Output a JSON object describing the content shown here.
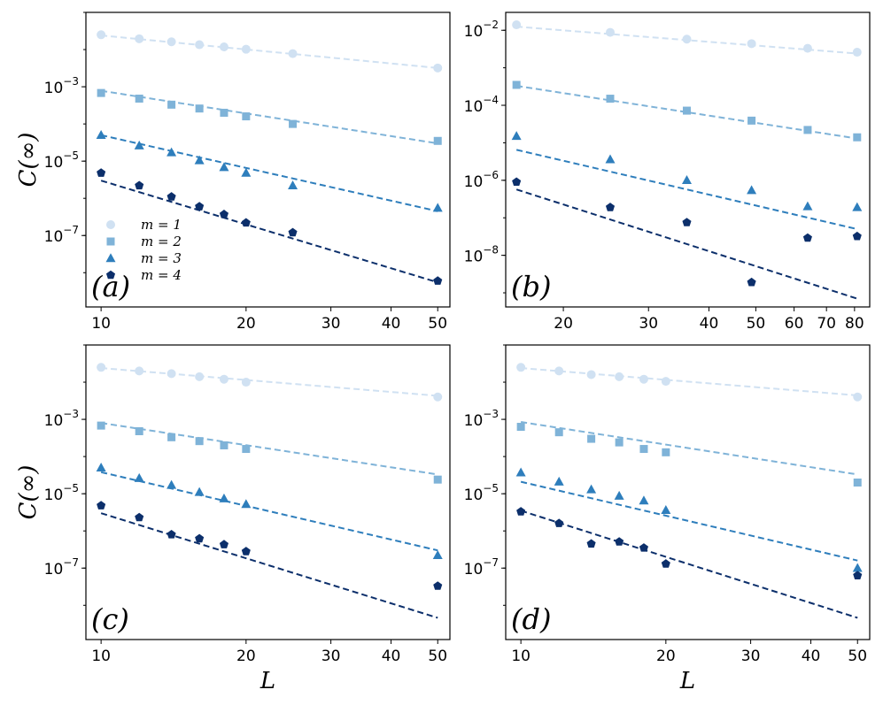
{
  "figure": {
    "ylabel": "C(∞)",
    "xlabel": "L"
  },
  "colors": {
    "m1": "#d0e1f2",
    "m2": "#7fb3d8",
    "m3": "#2e7ebc",
    "m4": "#0c2f6b"
  },
  "chart_data": [
    {
      "type": "scatter",
      "panel": "(a)",
      "xscale": "log",
      "yscale": "log",
      "xlim": [
        9.3,
        53
      ],
      "ylim": [
        1.2e-09,
        0.1
      ],
      "xticks": [
        10,
        20,
        30,
        40,
        50
      ],
      "yticks": [
        {
          "value": 0.001,
          "label": "10^-3"
        },
        {
          "value": 1e-05,
          "label": "10^-5"
        },
        {
          "value": 1e-07,
          "label": "10^-7"
        }
      ],
      "show_xlabel": false,
      "show_ylabel": true,
      "legend": {
        "position": "lower-left",
        "entries": [
          "m = 1",
          "m = 2",
          "m = 3",
          "m = 4"
        ]
      },
      "series": [
        {
          "name": "m = 1",
          "marker": "circle",
          "x": [
            10,
            12,
            14,
            16,
            18,
            20,
            25,
            50
          ],
          "y": [
            0.025,
            0.0195,
            0.0162,
            0.0135,
            0.0118,
            0.0102,
            0.0078,
            0.0032
          ],
          "fit": [
            [
              10,
              0.024
            ],
            [
              50,
              0.0032
            ]
          ]
        },
        {
          "name": "m = 2",
          "marker": "square",
          "x": [
            10,
            12,
            14,
            16,
            18,
            20,
            25,
            50
          ],
          "y": [
            0.00068,
            0.00048,
            0.00033,
            0.00026,
            0.0002,
            0.00016,
            0.0001,
            3.5e-05
          ],
          "fit": [
            [
              10,
              0.00078
            ],
            [
              50,
              3e-05
            ]
          ]
        },
        {
          "name": "m = 3",
          "marker": "triangle",
          "x": [
            10,
            12,
            14,
            16,
            18,
            20,
            25,
            50
          ],
          "y": [
            5e-05,
            2.6e-05,
            1.7e-05,
            1.04e-05,
            6.8e-06,
            4.8e-06,
            2.2e-06,
            5.5e-07
          ],
          "fit": [
            [
              10,
              5e-05
            ],
            [
              50,
              4.5e-07
            ]
          ]
        },
        {
          "name": "m = 4",
          "marker": "pentagon",
          "x": [
            10,
            12,
            14,
            16,
            18,
            20,
            25,
            50
          ],
          "y": [
            4.8e-06,
            2.2e-06,
            1.1e-06,
            6e-07,
            3.7e-07,
            2.2e-07,
            1.2e-07,
            6e-09
          ],
          "fit": [
            [
              10,
              3e-06
            ],
            [
              50,
              5.5e-09
            ]
          ]
        }
      ]
    },
    {
      "type": "scatter",
      "panel": "(b)",
      "xscale": "log",
      "yscale": "log",
      "xlim": [
        15.2,
        86
      ],
      "ylim": [
        4.2e-10,
        0.03
      ],
      "xticks": [
        20,
        30,
        40,
        50,
        60,
        70,
        80
      ],
      "yticks": [
        {
          "value": 0.01,
          "label": "10^-2"
        },
        {
          "value": 0.0001,
          "label": "10^-4"
        },
        {
          "value": 1e-06,
          "label": "10^-6"
        },
        {
          "value": 1e-08,
          "label": "10^-8"
        }
      ],
      "show_xlabel": false,
      "show_ylabel": false,
      "series": [
        {
          "name": "m = 1",
          "marker": "circle",
          "x": [
            16,
            25,
            36,
            49,
            64,
            81
          ],
          "y": [
            0.014,
            0.0088,
            0.0058,
            0.0044,
            0.0033,
            0.0026
          ],
          "fit": [
            [
              16,
              0.0125
            ],
            [
              81,
              0.0024
            ]
          ]
        },
        {
          "name": "m = 2",
          "marker": "square",
          "x": [
            16,
            25,
            36,
            49,
            64,
            81
          ],
          "y": [
            0.00035,
            0.00015,
            7.2e-05,
            3.9e-05,
            2.2e-05,
            1.4e-05
          ],
          "fit": [
            [
              16,
              0.00033
            ],
            [
              81,
              1.3e-05
            ]
          ]
        },
        {
          "name": "m = 3",
          "marker": "triangle",
          "x": [
            16,
            25,
            36,
            49,
            64,
            81
          ],
          "y": [
            1.5e-05,
            3.6e-06,
            1e-06,
            5.4e-07,
            2e-07,
            1.9e-07
          ],
          "fit": [
            [
              16,
              6.5e-06
            ],
            [
              81,
              5e-08
            ]
          ]
        },
        {
          "name": "m = 4",
          "marker": "pentagon",
          "x": [
            16,
            25,
            36,
            49,
            64,
            81
          ],
          "y": [
            9e-07,
            1.9e-07,
            7.5e-08,
            1.9e-09,
            2.9e-08,
            3.2e-08
          ],
          "fit": [
            [
              16,
              5.7e-07
            ],
            [
              81,
              7e-10
            ]
          ]
        }
      ]
    },
    {
      "type": "scatter",
      "panel": "(c)",
      "xscale": "log",
      "yscale": "log",
      "xlim": [
        9.3,
        53
      ],
      "ylim": [
        1.2e-09,
        0.1
      ],
      "xticks": [
        10,
        20,
        30,
        40,
        50
      ],
      "yticks": [
        {
          "value": 0.001,
          "label": "10^-3"
        },
        {
          "value": 1e-05,
          "label": "10^-5"
        },
        {
          "value": 1e-07,
          "label": "10^-7"
        }
      ],
      "show_xlabel": true,
      "show_ylabel": true,
      "series": [
        {
          "name": "m = 1",
          "marker": "circle",
          "x": [
            10,
            12,
            14,
            16,
            18,
            20,
            50
          ],
          "y": [
            0.025,
            0.02,
            0.017,
            0.014,
            0.012,
            0.01,
            0.004
          ],
          "fit": [
            [
              10,
              0.024
            ],
            [
              50,
              0.0043
            ]
          ]
        },
        {
          "name": "m = 2",
          "marker": "square",
          "x": [
            10,
            12,
            14,
            16,
            18,
            20,
            50
          ],
          "y": [
            0.00068,
            0.00048,
            0.00033,
            0.00026,
            0.0002,
            0.00016,
            2.4e-05
          ],
          "fit": [
            [
              10,
              0.0008
            ],
            [
              50,
              3.3e-05
            ]
          ]
        },
        {
          "name": "m = 3",
          "marker": "triangle",
          "x": [
            10,
            12,
            14,
            16,
            18,
            20,
            50
          ],
          "y": [
            5e-05,
            2.6e-05,
            1.7e-05,
            1.1e-05,
            7.4e-06,
            5.2e-06,
            2.2e-07
          ],
          "fit": [
            [
              10,
              3.8e-05
            ],
            [
              50,
              3e-07
            ]
          ]
        },
        {
          "name": "m = 4",
          "marker": "pentagon",
          "x": [
            10,
            12,
            14,
            16,
            18,
            20,
            50
          ],
          "y": [
            4.8e-06,
            2.3e-06,
            8e-07,
            6.2e-07,
            4.3e-07,
            2.8e-07,
            3.3e-08
          ],
          "fit": [
            [
              10,
              3e-06
            ],
            [
              50,
              4.6e-09
            ]
          ]
        }
      ]
    },
    {
      "type": "scatter",
      "panel": "(d)",
      "xscale": "log",
      "yscale": "log",
      "xlim": [
        9.3,
        53
      ],
      "ylim": [
        1.2e-09,
        0.1
      ],
      "xticks": [
        10,
        20,
        30,
        40,
        50
      ],
      "yticks": [
        {
          "value": 0.001,
          "label": "10^-3"
        },
        {
          "value": 1e-05,
          "label": "10^-5"
        },
        {
          "value": 1e-07,
          "label": "10^-7"
        }
      ],
      "show_xlabel": true,
      "show_ylabel": false,
      "series": [
        {
          "name": "m = 1",
          "marker": "circle",
          "x": [
            10,
            12,
            14,
            16,
            18,
            20,
            50
          ],
          "y": [
            0.025,
            0.02,
            0.016,
            0.014,
            0.012,
            0.0105,
            0.004
          ],
          "fit": [
            [
              10,
              0.024
            ],
            [
              50,
              0.0044
            ]
          ]
        },
        {
          "name": "m = 2",
          "marker": "square",
          "x": [
            10,
            12,
            14,
            16,
            18,
            20,
            50
          ],
          "y": [
            0.00063,
            0.00045,
            0.0003,
            0.00024,
            0.00016,
            0.00013,
            2e-05
          ],
          "fit": [
            [
              10,
              0.00085
            ],
            [
              50,
              3.3e-05
            ]
          ]
        },
        {
          "name": "m = 3",
          "marker": "triangle",
          "x": [
            10,
            12,
            14,
            16,
            18,
            20,
            50
          ],
          "y": [
            3.7e-05,
            2.1e-05,
            1.3e-05,
            8.7e-06,
            6.5e-06,
            3.6e-06,
            1e-07
          ],
          "fit": [
            [
              10,
              2.1e-05
            ],
            [
              50,
              1.6e-07
            ]
          ]
        },
        {
          "name": "m = 4",
          "marker": "pentagon",
          "x": [
            10,
            12,
            14,
            16,
            18,
            20,
            50
          ],
          "y": [
            3.3e-06,
            1.6e-06,
            4.5e-07,
            5.1e-07,
            3.5e-07,
            1.3e-07,
            6.3e-08
          ],
          "fit": [
            [
              10,
              3.5e-06
            ],
            [
              50,
              4.6e-09
            ]
          ]
        }
      ]
    }
  ]
}
